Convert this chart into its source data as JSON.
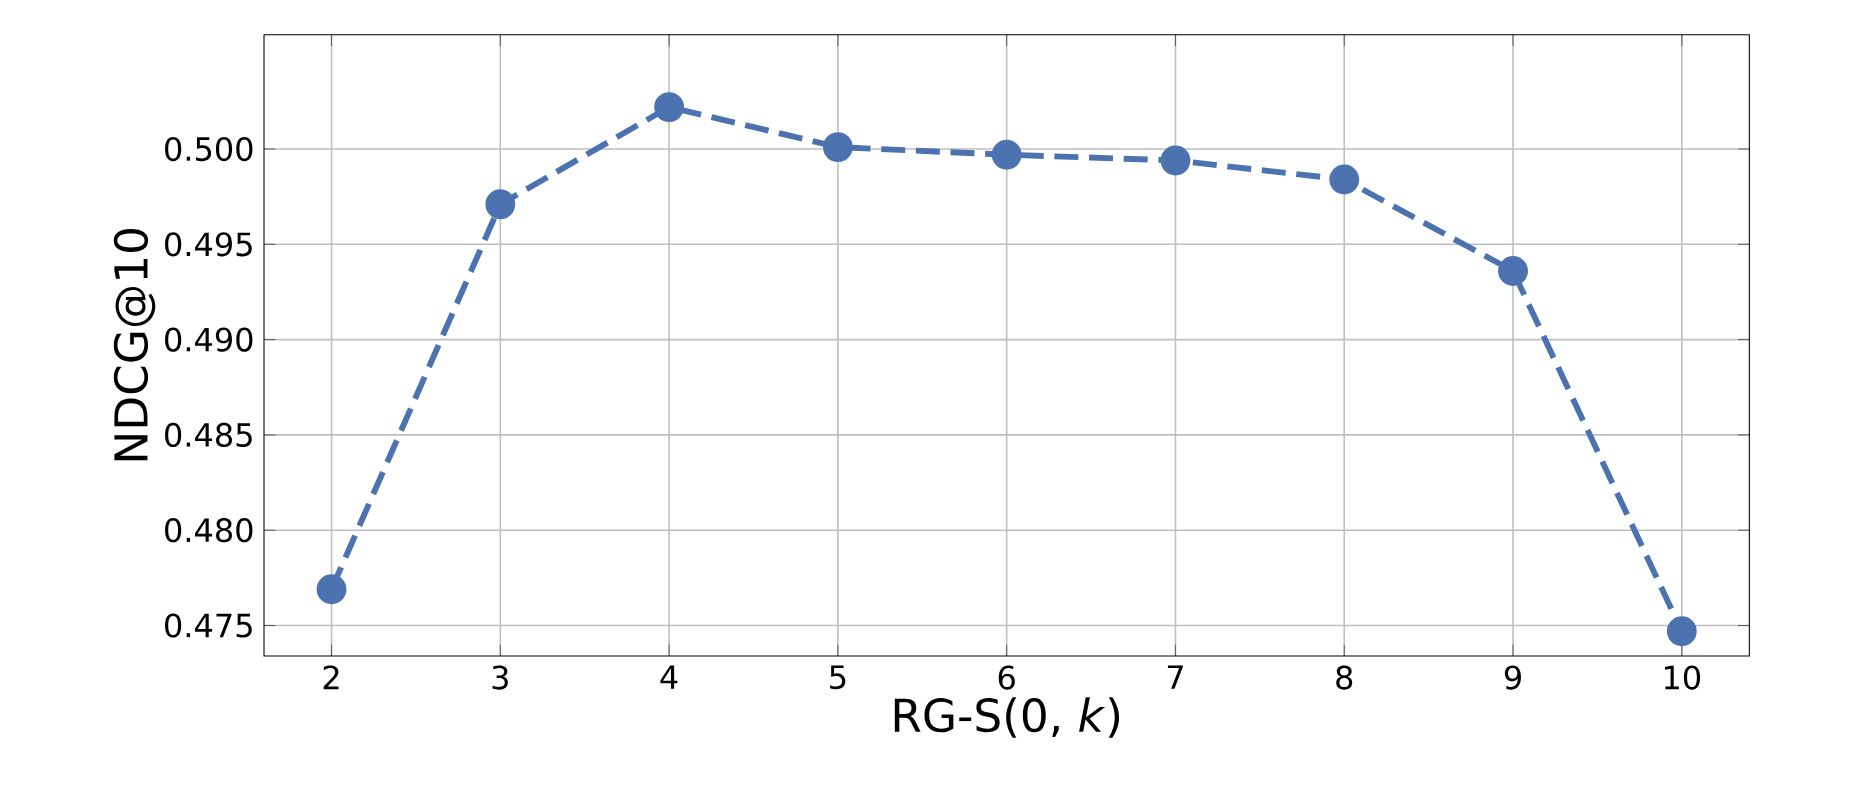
{
  "chart_data": {
    "type": "line",
    "xlabel": "RG-S(0, *k*)",
    "ylabel": "NDCG@10",
    "x": [
      2,
      3,
      4,
      5,
      6,
      7,
      8,
      9,
      10
    ],
    "series": [
      {
        "color": "#4c72b0",
        "values": [
          0.4769,
          0.4971,
          0.5022,
          0.5001,
          0.4997,
          0.4994,
          0.4984,
          0.4936,
          0.4747
        ]
      }
    ],
    "xlim": [
      1.6,
      10.4
    ],
    "ylim": [
      0.4734,
      0.506
    ],
    "xticks": [
      2,
      3,
      4,
      5,
      6,
      7,
      8,
      9,
      10
    ],
    "yticks": [
      {
        "value": 0.475,
        "label": "0.475"
      },
      {
        "value": 0.48,
        "label": "0.480"
      },
      {
        "value": 0.485,
        "label": "0.485"
      },
      {
        "value": 0.49,
        "label": "0.490"
      },
      {
        "value": 0.495,
        "label": "0.495"
      },
      {
        "value": 0.5,
        "label": "0.500"
      }
    ],
    "grid": true,
    "marker": "circle",
    "line_style": "dashed"
  }
}
